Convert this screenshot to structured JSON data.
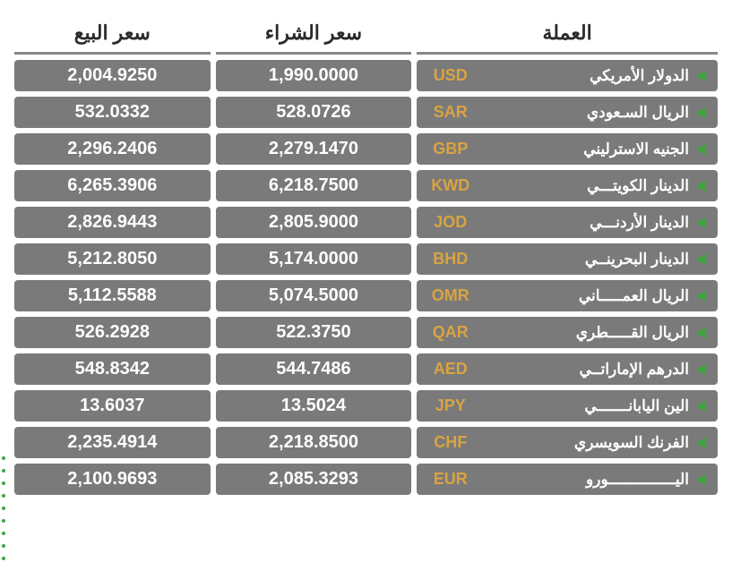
{
  "headers": {
    "currency": "العملة",
    "buy": "سعر الشراء",
    "sell": "سعر البيع"
  },
  "styling": {
    "row_bg": "#7a7a7a",
    "code_color": "#d9a441",
    "name_color": "#ffffff",
    "price_color": "#ffffff",
    "triangle_color": "#3fa63f",
    "header_color": "#2a2a2a",
    "header_border": "#888888",
    "font_size_header": 22,
    "font_size_name": 17,
    "font_size_code": 18,
    "font_size_price": 20
  },
  "rows": [
    {
      "name": "الدولار الأمريكي",
      "code": "USD",
      "buy": "1,990.0000",
      "sell": "2,004.9250"
    },
    {
      "name": "الريال السـعودي",
      "code": "SAR",
      "buy": "528.0726",
      "sell": "532.0332"
    },
    {
      "name": "الجنيه الاسترليني",
      "code": "GBP",
      "buy": "2,279.1470",
      "sell": "2,296.2406"
    },
    {
      "name": "الدينار الكويتـــي",
      "code": "KWD",
      "buy": "6,218.7500",
      "sell": "6,265.3906"
    },
    {
      "name": "الدينار الأردنـــي",
      "code": "JOD",
      "buy": "2,805.9000",
      "sell": "2,826.9443"
    },
    {
      "name": "الدينار البحرينــي",
      "code": "BHD",
      "buy": "5,174.0000",
      "sell": "5,212.8050"
    },
    {
      "name": "الريال العمـــــاني",
      "code": "OMR",
      "buy": "5,074.5000",
      "sell": "5,112.5588"
    },
    {
      "name": "الريال القـــــطري",
      "code": "QAR",
      "buy": "522.3750",
      "sell": "526.2928"
    },
    {
      "name": "الدرهم الإماراتــي",
      "code": "AED",
      "buy": "544.7486",
      "sell": "548.8342"
    },
    {
      "name": "الين اليابانـــــــي",
      "code": "JPY",
      "buy": "13.5024",
      "sell": "13.6037"
    },
    {
      "name": "الفرنك السويسري",
      "code": "CHF",
      "buy": "2,218.8500",
      "sell": "2,235.4914"
    },
    {
      "name": "اليـــــــــــــــورو",
      "code": "EUR",
      "buy": "2,085.3293",
      "sell": "2,100.9693"
    }
  ]
}
